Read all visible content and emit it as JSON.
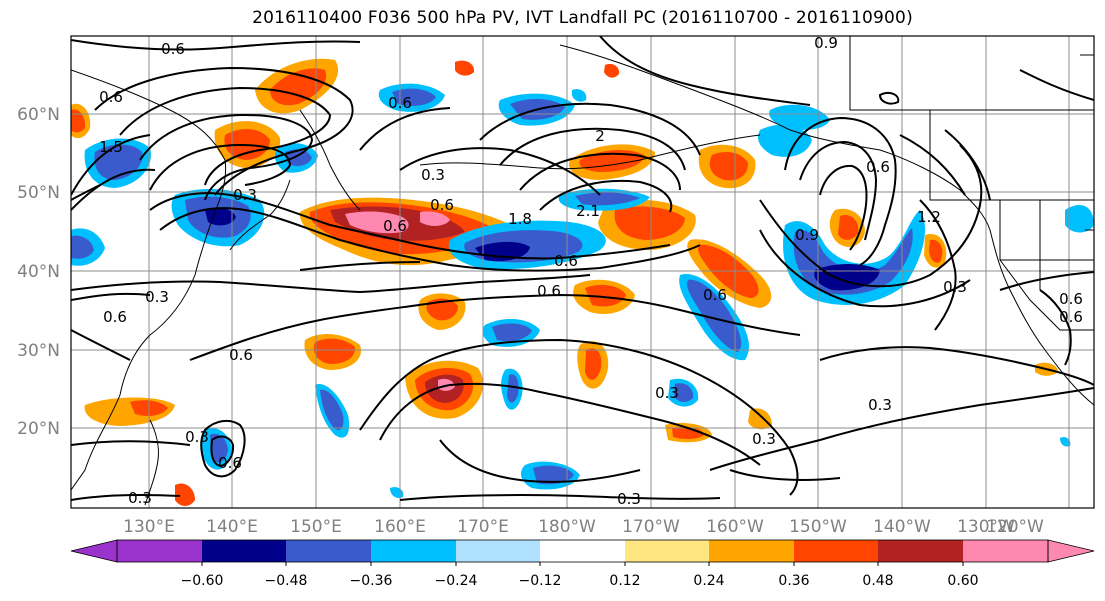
{
  "title": "2016110400 F036 500 hPa PV, IVT Landfall PC (2016110700 - 2016110900)",
  "axes": {
    "lat_labels": [
      "60°N",
      "50°N",
      "40°N",
      "30°N",
      "20°N"
    ],
    "lon_labels": [
      "130°E",
      "140°E",
      "150°E",
      "160°E",
      "170°E",
      "180°W",
      "170°W",
      "160°W",
      "150°W",
      "140°W",
      "130°W",
      "120°W"
    ]
  },
  "colorbar": {
    "tick_labels": [
      "−0.60",
      "−0.48",
      "−0.36",
      "−0.24",
      "−0.12",
      "0.12",
      "0.24",
      "0.36",
      "0.48",
      "0.60"
    ],
    "colors": [
      "#9933cc",
      "#00008b",
      "#3a5bcc",
      "#00bfff",
      "#b0e2ff",
      "#ffffff",
      "#ffe680",
      "#ffa500",
      "#ff4500",
      "#b22222",
      "#ff88b0"
    ]
  },
  "contour_labels": [
    "0.6",
    "0.6",
    "0.6",
    "1.5",
    "0.3",
    "1.8",
    "2.1",
    "0.6",
    "0.6",
    "0.9",
    "0.6",
    "1.2",
    "0.3",
    "0.6",
    "0.3",
    "0.6",
    "0.6",
    "0.3",
    "0.3",
    "0.3",
    "0.3",
    "0.9",
    "0.6",
    "0.6",
    "0.3",
    "0.3",
    "0.6",
    "0.3",
    "2",
    "0.6",
    "0.6"
  ]
}
